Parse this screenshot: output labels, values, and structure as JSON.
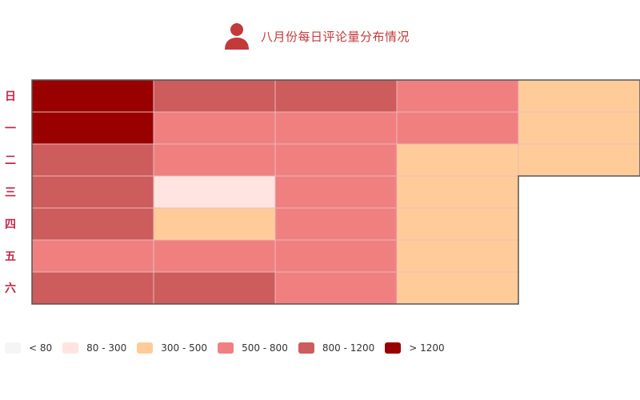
{
  "title": {
    "text": "八月份每日评论量分布情况",
    "icon": "person-icon",
    "color": "#c23a3a"
  },
  "weekday_labels": [
    "日",
    "一",
    "二",
    "三",
    "四",
    "五",
    "六"
  ],
  "legend": [
    {
      "label": "< 80",
      "color": "#f5f5f5"
    },
    {
      "label": "80 - 300",
      "color": "#ffe4e1"
    },
    {
      "label": "300 - 500",
      "color": "#ffcc99"
    },
    {
      "label": "500 - 800",
      "color": "#f08080"
    },
    {
      "label": "800 - 1200",
      "color": "#cd5c5c"
    },
    {
      "label": "> 1200",
      "color": "#990000"
    }
  ],
  "chart_data": {
    "type": "heatmap",
    "layout": "calendar",
    "weeks": 5,
    "rows": [
      "日",
      "一",
      "二",
      "三",
      "四",
      "五",
      "六"
    ],
    "cells": [
      [
        "> 1200",
        "800 - 1200",
        "800 - 1200",
        "500 - 800",
        "300 - 500"
      ],
      [
        "> 1200",
        "500 - 800",
        "500 - 800",
        "500 - 800",
        "300 - 500"
      ],
      [
        "800 - 1200",
        "500 - 800",
        "500 - 800",
        "300 - 500",
        "300 - 500"
      ],
      [
        "800 - 1200",
        "80 - 300",
        "500 - 800",
        "300 - 500",
        null
      ],
      [
        "800 - 1200",
        "300 - 500",
        "500 - 800",
        "300 - 500",
        null
      ],
      [
        "500 - 800",
        "500 - 800",
        "500 - 800",
        "300 - 500",
        null
      ],
      [
        "800 - 1200",
        "800 - 1200",
        "500 - 800",
        "300 - 500",
        null
      ]
    ]
  }
}
